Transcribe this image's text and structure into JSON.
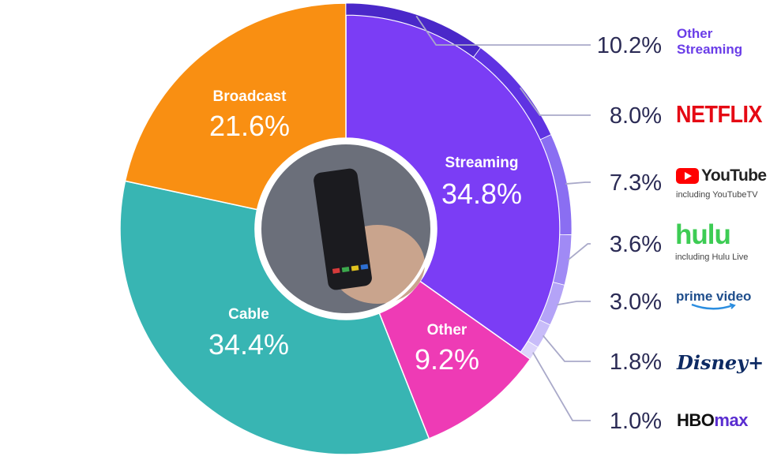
{
  "chart_data": {
    "type": "donut",
    "slices": [
      {
        "name": "Streaming",
        "value": 34.8,
        "label": "34.8%",
        "color": "#7b3df5"
      },
      {
        "name": "Other",
        "value": 9.2,
        "label": "9.2%",
        "color": "#ee3bb5"
      },
      {
        "name": "Cable",
        "value": 34.4,
        "label": "34.4%",
        "color": "#38b5b3"
      },
      {
        "name": "Broadcast",
        "value": 21.6,
        "label": "21.6%",
        "color": "#f98f12"
      }
    ],
    "streaming_breakdown": [
      {
        "name": "Other Streaming",
        "value": 10.2,
        "label": "10.2%",
        "color": "#4a28c9"
      },
      {
        "name": "Netflix",
        "value": 8.0,
        "label": "8.0%",
        "color": "#5f33e2",
        "sub": ""
      },
      {
        "name": "YouTube",
        "value": 7.3,
        "label": "7.3%",
        "color": "#8a6ef2",
        "sub": "including YouTubeTV"
      },
      {
        "name": "Hulu",
        "value": 3.6,
        "label": "3.6%",
        "color": "#a08af5",
        "sub": "including Hulu Live"
      },
      {
        "name": "Prime Video",
        "value": 3.0,
        "label": "3.0%",
        "color": "#b4a3f7"
      },
      {
        "name": "Disney+",
        "value": 1.8,
        "label": "1.8%",
        "color": "#c8bcf9"
      },
      {
        "name": "HBO Max",
        "value": 1.0,
        "label": "1.0%",
        "color": "#dcd4fb"
      }
    ]
  },
  "legend": {
    "other_streaming": {
      "line1": "Other",
      "line2": "Streaming"
    },
    "netflix": "NETFLIX",
    "youtube": {
      "word": "YouTube",
      "sub": "including YouTubeTV"
    },
    "hulu": {
      "word": "hulu",
      "sub": "including Hulu Live"
    },
    "prime": "prime video",
    "disney": "Disney+",
    "hbomax": {
      "a": "HBO",
      "b": "max"
    }
  },
  "center_image": "tv-remote-photo"
}
